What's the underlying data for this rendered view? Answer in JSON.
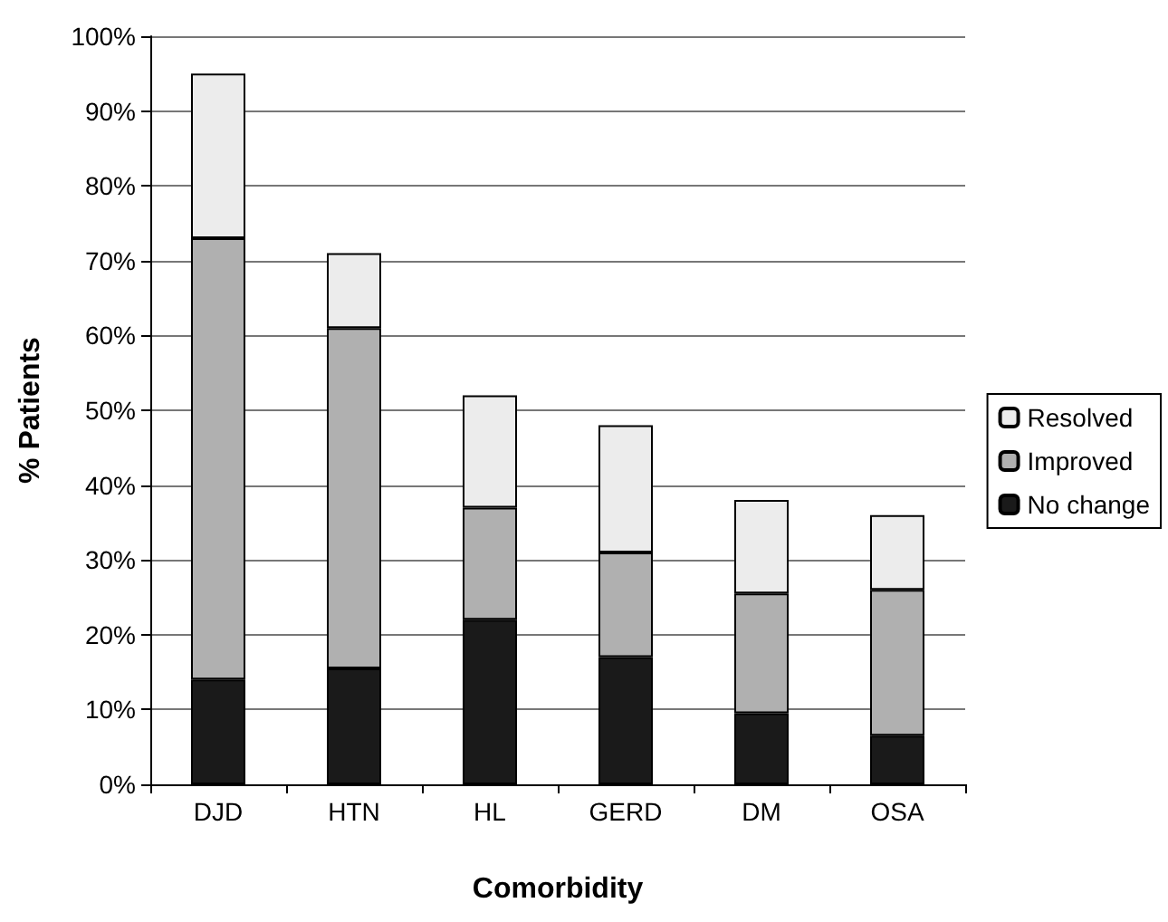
{
  "chart_data": {
    "type": "bar",
    "stacked": true,
    "xlabel": "Comorbidity",
    "ylabel": "% Patients",
    "categories": [
      "DJD",
      "HTN",
      "HL",
      "GERD",
      "DM",
      "OSA"
    ],
    "series": [
      {
        "name": "No change",
        "color": "#1a1a1a",
        "values": [
          14,
          15.5,
          22,
          17,
          9.5,
          6.5
        ]
      },
      {
        "name": "Improved",
        "color": "#b0b0b0",
        "values": [
          59,
          45.5,
          15,
          14,
          16,
          19.5
        ]
      },
      {
        "name": "Resolved",
        "color": "#ececec",
        "values": [
          22,
          10,
          15,
          17,
          12.5,
          10
        ]
      }
    ],
    "ylim": [
      0,
      100
    ],
    "yticks": [
      {
        "value": 0,
        "label": "0%"
      },
      {
        "value": 10,
        "label": "10%"
      },
      {
        "value": 20,
        "label": "20%"
      },
      {
        "value": 30,
        "label": "30%"
      },
      {
        "value": 40,
        "label": "40%"
      },
      {
        "value": 50,
        "label": "50%"
      },
      {
        "value": 60,
        "label": "60%"
      },
      {
        "value": 70,
        "label": "70%"
      },
      {
        "value": 80,
        "label": "80%"
      },
      {
        "value": 90,
        "label": "90%"
      },
      {
        "value": 100,
        "label": "100%"
      }
    ],
    "grid": "y",
    "legend": "right"
  }
}
